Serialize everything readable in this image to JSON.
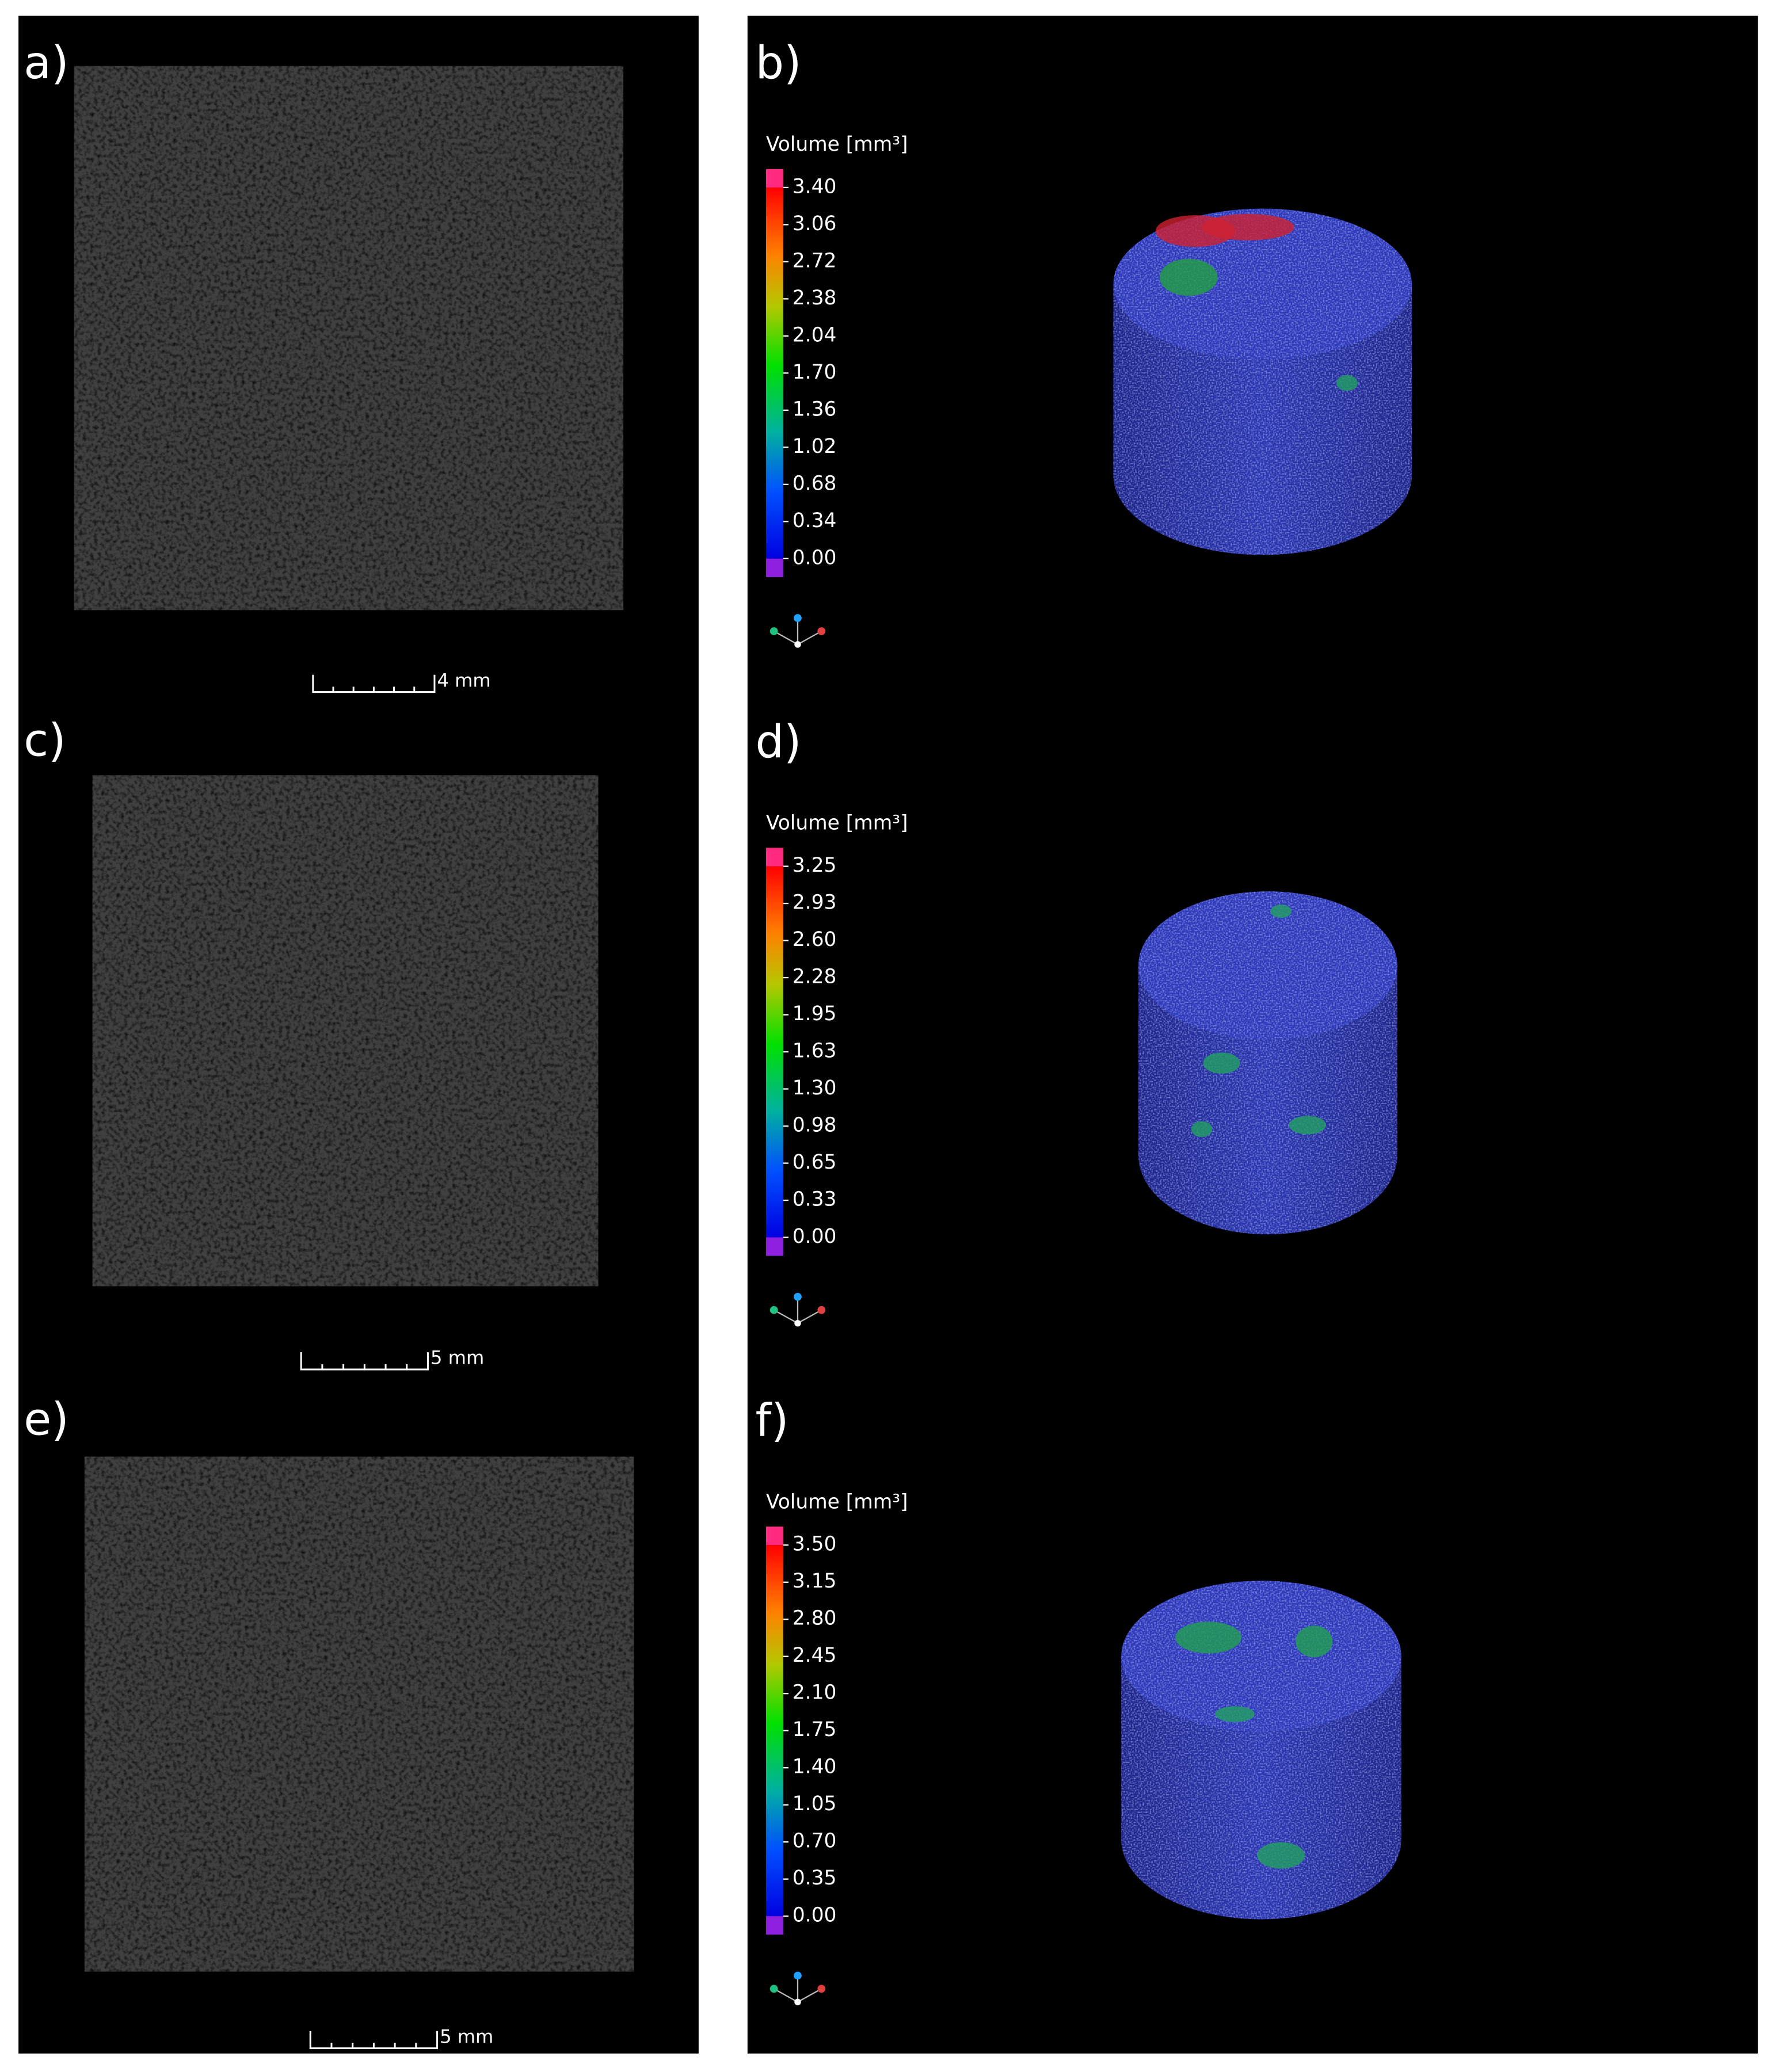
{
  "left_panels": [
    {
      "label": "a)",
      "scale_bar": "4 mm"
    },
    {
      "label": "c)",
      "scale_bar": "5 mm"
    },
    {
      "label": "e)",
      "scale_bar": "5 mm"
    }
  ],
  "right_panels": [
    {
      "label": "b)",
      "colorbar_title": "Volume [mm³]",
      "ticks": [
        "3.40",
        "3.06",
        "2.72",
        "2.38",
        "2.04",
        "1.70",
        "1.36",
        "1.02",
        "0.68",
        "0.34",
        "0.00"
      ]
    },
    {
      "label": "d)",
      "colorbar_title": "Volume [mm³]",
      "ticks": [
        "3.25",
        "2.93",
        "2.60",
        "2.28",
        "1.95",
        "1.63",
        "1.30",
        "0.98",
        "0.65",
        "0.33",
        "0.00"
      ]
    },
    {
      "label": "f)",
      "colorbar_title": "Volume [mm³]",
      "ticks": [
        "3.50",
        "3.15",
        "2.80",
        "2.45",
        "2.10",
        "1.75",
        "1.40",
        "1.05",
        "0.70",
        "0.35",
        "0.00"
      ]
    }
  ]
}
